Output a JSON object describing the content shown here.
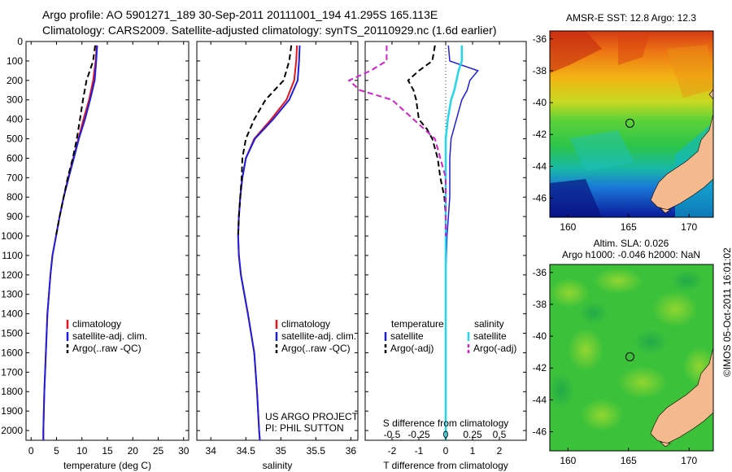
{
  "header": {
    "line1": "Argo profile: AO 5901271_189 30-Sep-2011 20111001_194 41.295S 165.113E",
    "line2": "Climatology: CARS2009. Satellite-adjusted climatology: synTS_20110929.nc (1.6d earlier)"
  },
  "colors": {
    "climatology": "#e8141b",
    "satellite": "#1e1ee0",
    "argo": "#000000",
    "sat_salinity": "#22d8e8",
    "argo_adj_salinity": "#d020d0",
    "land": "#f5b98e"
  },
  "chart_data": [
    {
      "type": "line",
      "name": "temperature-profile",
      "xlabel": "temperature (deg C)",
      "xlim": [
        -1,
        31
      ],
      "ylim": [
        2050,
        0
      ],
      "xticks": [
        "0",
        "5",
        "10",
        "15",
        "20",
        "25",
        "30"
      ],
      "yticks": [
        "0",
        "100",
        "200",
        "300",
        "400",
        "500",
        "600",
        "700",
        "800",
        "900",
        "1000",
        "1100",
        "1200",
        "1300",
        "1400",
        "1500",
        "1600",
        "1700",
        "1800",
        "1900",
        "2000"
      ],
      "depth": [
        20,
        100,
        200,
        300,
        400,
        500,
        600,
        700,
        800,
        900,
        1000,
        1100,
        1200,
        1400,
        1600,
        1800,
        2000,
        2050
      ],
      "series": [
        {
          "name": "climatology",
          "values": [
            12.9,
            12.7,
            12.2,
            11.4,
            10.3,
            9.3,
            8.3,
            7.3,
            6.4,
            5.6,
            4.9,
            4.2,
            3.8,
            3.2,
            2.9,
            2.6,
            2.4,
            2.4
          ]
        },
        {
          "name": "satellite-adj. clim.",
          "values": [
            13.0,
            12.8,
            12.5,
            11.6,
            10.6,
            9.4,
            8.4,
            7.4,
            6.4,
            5.6,
            4.9,
            4.2,
            3.8,
            3.2,
            2.9,
            2.6,
            2.4,
            2.4
          ]
        },
        {
          "name": "Argo(..raw -QC)",
          "values": [
            12.6,
            12.2,
            10.9,
            10.2,
            9.6,
            9.0,
            8.2,
            7.2,
            6.4,
            5.6,
            4.9,
            null,
            null,
            null,
            null,
            null,
            null,
            null
          ]
        }
      ],
      "legend": [
        "climatology",
        "satellite-adj. clim.",
        "Argo(..raw -QC)"
      ]
    },
    {
      "type": "line",
      "name": "salinity-profile",
      "xlabel": "salinity",
      "xlim": [
        33.8,
        36.1
      ],
      "ylim": [
        2050,
        0
      ],
      "xticks": [
        "34",
        "34.5",
        "35",
        "35.5",
        "36"
      ],
      "depth": [
        20,
        100,
        200,
        300,
        400,
        500,
        600,
        700,
        800,
        900,
        1000,
        1100,
        1200,
        1400,
        1600,
        1800,
        2000,
        2050
      ],
      "series": [
        {
          "name": "climatology",
          "values": [
            35.23,
            35.22,
            35.19,
            35.08,
            34.86,
            34.62,
            34.5,
            34.45,
            34.42,
            34.4,
            34.39,
            34.4,
            34.43,
            34.53,
            34.62,
            34.66,
            34.69,
            34.7
          ]
        },
        {
          "name": "satellite-adj. clim.",
          "values": [
            35.27,
            35.26,
            35.24,
            35.12,
            34.89,
            34.63,
            34.5,
            34.45,
            34.42,
            34.4,
            34.39,
            34.4,
            34.43,
            34.53,
            34.62,
            34.66,
            34.69,
            34.7
          ]
        },
        {
          "name": "Argo(..raw -QC)",
          "values": [
            35.15,
            35.12,
            35.04,
            34.78,
            34.62,
            34.5,
            34.45,
            34.44,
            34.42,
            34.4,
            34.39,
            null,
            null,
            null,
            null,
            null,
            null,
            null
          ]
        }
      ],
      "legend": [
        "climatology",
        "satellite-adj. clim.",
        "Argo(..raw -QC)"
      ],
      "annotation": [
        "US ARGO PROJECT",
        "PI: PHIL SUTTON"
      ]
    },
    {
      "type": "line",
      "name": "difference-profile",
      "xlabel_top": "S difference from climatology",
      "xlabel_bottom": "T difference from climatology",
      "top_ticks": [
        "-0.5",
        "-0.25",
        "0",
        "0.25",
        "0.5"
      ],
      "xticks": [
        "-2",
        "-1",
        "0",
        "1",
        "2"
      ],
      "xlim": [
        -3,
        3
      ],
      "ylim": [
        2050,
        0
      ],
      "depth": [
        20,
        100,
        150,
        200,
        250,
        300,
        400,
        450,
        500,
        600,
        700,
        800,
        900,
        1000,
        1200,
        1400,
        1600,
        1800,
        2000,
        2050
      ],
      "series": [
        {
          "name": "temperature satellite",
          "values": [
            0.1,
            0.15,
            1.2,
            0.9,
            0.8,
            0.6,
            0.4,
            0.3,
            0.2,
            0.15,
            0.15,
            0.15,
            0.1,
            0.05,
            0,
            0,
            0,
            0,
            0,
            0
          ]
        },
        {
          "name": "temperature Argo(-adj)",
          "values": [
            -0.4,
            -0.5,
            -1.0,
            -1.4,
            -1.2,
            -1.1,
            -1.0,
            -0.7,
            -0.5,
            -0.3,
            -0.2,
            -0.05,
            0,
            0,
            null,
            null,
            null,
            null,
            null,
            null
          ]
        },
        {
          "name": "salinity satellite",
          "values": [
            0.15,
            0.15,
            0.12,
            0.1,
            0.08,
            0.05,
            0.02,
            0.01,
            0,
            0,
            0,
            0,
            0,
            0,
            0,
            0,
            0,
            0,
            0,
            0
          ]
        },
        {
          "name": "salinity Argo(-adj)",
          "values": [
            -0.55,
            -0.55,
            -0.7,
            -0.9,
            -0.8,
            -0.5,
            -0.3,
            -0.2,
            -0.1,
            -0.05,
            0,
            0,
            0,
            0,
            null,
            null,
            null,
            null,
            null,
            null
          ]
        }
      ],
      "legend_headers": [
        "temperature",
        "salinity"
      ],
      "legend": [
        "satellite",
        "Argo(-adj)",
        "satellite",
        "Argo(-adj)"
      ]
    },
    {
      "type": "heatmap",
      "name": "sst-map",
      "title": "AMSR-E SST: 12.8 Argo: 12.3",
      "xlim": [
        158.5,
        172
      ],
      "ylim": [
        -47.2,
        -35.5
      ],
      "xticks": [
        "160",
        "165",
        "170"
      ],
      "yticks": [
        "-36",
        "-38",
        "-40",
        "-42",
        "-44",
        "-46"
      ],
      "marker": {
        "lon": 165.113,
        "lat": -41.295
      }
    },
    {
      "type": "heatmap",
      "name": "sla-map",
      "title_line1": "Altim. SLA: 0.026",
      "title_line2": "Argo h1000: -0.046 h2000: NaN",
      "xlim": [
        158.5,
        172
      ],
      "ylim": [
        -47.2,
        -35.5
      ],
      "xticks": [
        "160",
        "165",
        "170"
      ],
      "yticks": [
        "-36",
        "-38",
        "-40",
        "-42",
        "-44",
        "-46"
      ],
      "marker": {
        "lon": 165.113,
        "lat": -41.295
      }
    }
  ],
  "credit": "©IMOS 05-Oct-2011 16:01:02"
}
